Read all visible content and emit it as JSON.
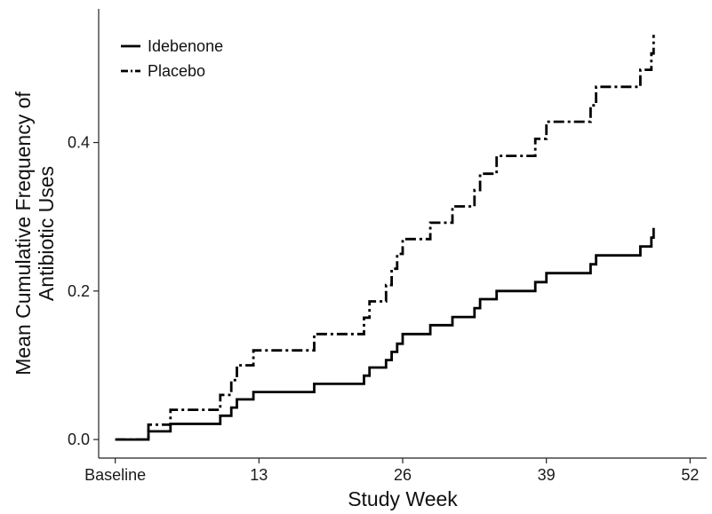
{
  "chart_data": {
    "type": "line",
    "step": true,
    "title": "",
    "xlabel": "Study Week",
    "ylabel": [
      "Mean Cumulative Frequency of",
      "Antibiotic Uses"
    ],
    "xlim": [
      -1.5,
      53.5
    ],
    "ylim": [
      -0.025,
      0.58
    ],
    "xticks": [
      {
        "value": 0,
        "label": "Baseline"
      },
      {
        "value": 13,
        "label": "13"
      },
      {
        "value": 26,
        "label": "26"
      },
      {
        "value": 39,
        "label": "39"
      },
      {
        "value": 52,
        "label": "52"
      }
    ],
    "yticks": [
      {
        "value": 0.0,
        "label": "0.0"
      },
      {
        "value": 0.2,
        "label": "0.2"
      },
      {
        "value": 0.4,
        "label": "0.4"
      }
    ],
    "grid": false,
    "legend": "top-left",
    "series": [
      {
        "name": "Idebenone",
        "style": "solid",
        "color": "#000000",
        "points": [
          [
            0,
            0.0
          ],
          [
            3,
            0.0
          ],
          [
            3,
            0.011
          ],
          [
            5,
            0.011
          ],
          [
            5,
            0.021
          ],
          [
            9.5,
            0.021
          ],
          [
            9.5,
            0.032
          ],
          [
            10.5,
            0.032
          ],
          [
            10.5,
            0.043
          ],
          [
            11,
            0.043
          ],
          [
            11,
            0.054
          ],
          [
            12.5,
            0.054
          ],
          [
            12.5,
            0.064
          ],
          [
            18,
            0.064
          ],
          [
            18,
            0.075
          ],
          [
            22.5,
            0.075
          ],
          [
            22.5,
            0.086
          ],
          [
            23,
            0.086
          ],
          [
            23,
            0.097
          ],
          [
            24.5,
            0.097
          ],
          [
            24.5,
            0.107
          ],
          [
            25,
            0.107
          ],
          [
            25,
            0.118
          ],
          [
            25.5,
            0.118
          ],
          [
            25.5,
            0.129
          ],
          [
            26,
            0.129
          ],
          [
            26,
            0.142
          ],
          [
            28.5,
            0.142
          ],
          [
            28.5,
            0.154
          ],
          [
            30.5,
            0.154
          ],
          [
            30.5,
            0.165
          ],
          [
            32.5,
            0.165
          ],
          [
            32.5,
            0.177
          ],
          [
            33,
            0.177
          ],
          [
            33,
            0.189
          ],
          [
            34.5,
            0.189
          ],
          [
            34.5,
            0.2
          ],
          [
            38,
            0.2
          ],
          [
            38,
            0.212
          ],
          [
            39,
            0.212
          ],
          [
            39,
            0.224
          ],
          [
            43,
            0.224
          ],
          [
            43,
            0.236
          ],
          [
            43.5,
            0.236
          ],
          [
            43.5,
            0.248
          ],
          [
            47.5,
            0.248
          ],
          [
            47.5,
            0.26
          ],
          [
            48.5,
            0.26
          ],
          [
            48.5,
            0.272
          ],
          [
            48.7,
            0.272
          ],
          [
            48.7,
            0.285
          ]
        ]
      },
      {
        "name": "Placebo",
        "style": "dashdot",
        "color": "#000000",
        "points": [
          [
            0,
            0.0
          ],
          [
            3,
            0.0
          ],
          [
            3,
            0.02
          ],
          [
            5,
            0.02
          ],
          [
            5,
            0.04
          ],
          [
            9.5,
            0.04
          ],
          [
            9.5,
            0.06
          ],
          [
            10.5,
            0.06
          ],
          [
            10.5,
            0.08
          ],
          [
            11,
            0.08
          ],
          [
            11,
            0.1
          ],
          [
            12.5,
            0.1
          ],
          [
            12.5,
            0.12
          ],
          [
            18,
            0.12
          ],
          [
            18,
            0.142
          ],
          [
            22.5,
            0.142
          ],
          [
            22.5,
            0.164
          ],
          [
            23,
            0.164
          ],
          [
            23,
            0.186
          ],
          [
            24.5,
            0.186
          ],
          [
            24.5,
            0.208
          ],
          [
            25,
            0.208
          ],
          [
            25,
            0.23
          ],
          [
            25.5,
            0.23
          ],
          [
            25.5,
            0.25
          ],
          [
            26,
            0.25
          ],
          [
            26,
            0.27
          ],
          [
            28.5,
            0.27
          ],
          [
            28.5,
            0.292
          ],
          [
            30.5,
            0.292
          ],
          [
            30.5,
            0.314
          ],
          [
            32.5,
            0.314
          ],
          [
            32.5,
            0.336
          ],
          [
            33,
            0.336
          ],
          [
            33,
            0.358
          ],
          [
            34.5,
            0.358
          ],
          [
            34.5,
            0.382
          ],
          [
            38,
            0.382
          ],
          [
            38,
            0.405
          ],
          [
            39,
            0.405
          ],
          [
            39,
            0.428
          ],
          [
            43,
            0.428
          ],
          [
            43,
            0.45
          ],
          [
            43.5,
            0.45
          ],
          [
            43.5,
            0.475
          ],
          [
            47.5,
            0.475
          ],
          [
            47.5,
            0.498
          ],
          [
            48.5,
            0.498
          ],
          [
            48.5,
            0.52
          ],
          [
            48.7,
            0.52
          ],
          [
            48.7,
            0.545
          ]
        ]
      }
    ]
  }
}
